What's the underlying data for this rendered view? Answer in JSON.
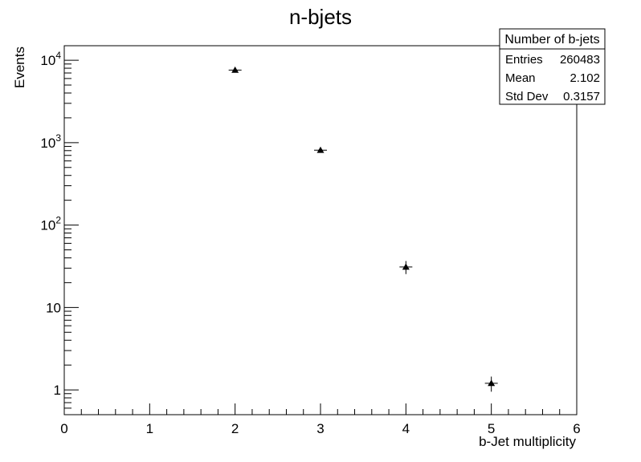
{
  "chart_data": {
    "type": "scatter",
    "title": "n-bjets",
    "xlabel": "b-Jet multiplicity",
    "ylabel": "Events",
    "xlim": [
      0,
      6
    ],
    "ylim": [
      0.5,
      15000
    ],
    "yscale": "log",
    "grid": false,
    "marker": "triangle",
    "x": [
      2,
      3,
      4,
      5
    ],
    "y": [
      7600,
      810,
      31,
      1.2
    ],
    "yerr": [
      87,
      28,
      5.6,
      0.25
    ],
    "x_ticks": [
      "0",
      "1",
      "2",
      "3",
      "4",
      "5",
      "6"
    ],
    "y_ticks": [
      {
        "base": "1",
        "exp": ""
      },
      {
        "base": "10",
        "exp": ""
      },
      {
        "base": "10",
        "exp": "2"
      },
      {
        "base": "10",
        "exp": "3"
      },
      {
        "base": "10",
        "exp": "4"
      }
    ],
    "stats_box": {
      "title": "Number of b-jets",
      "rows": [
        {
          "label": "Entries",
          "value": "260483"
        },
        {
          "label": "Mean",
          "value": "2.102"
        },
        {
          "label": "Std Dev",
          "value": "0.3157"
        }
      ]
    }
  }
}
